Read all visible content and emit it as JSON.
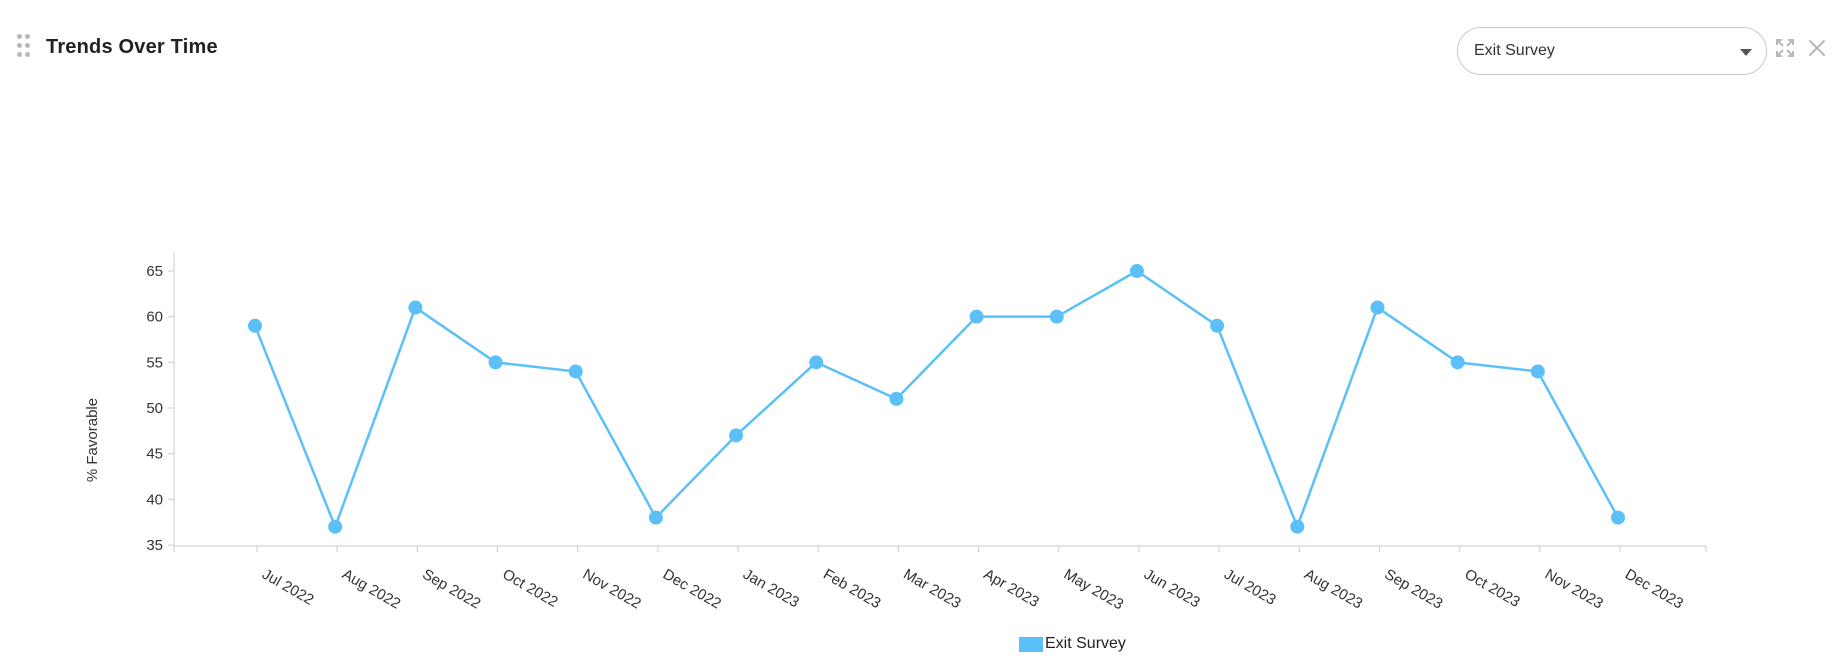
{
  "header": {
    "title": "Trends Over Time",
    "drag_icon": "drag-handle-icon",
    "expand_icon": "expand-icon",
    "close_icon": "close-icon"
  },
  "survey_select": {
    "selected": "Exit Survey"
  },
  "colors": {
    "series": "#5bc0f8",
    "axis": "#cccccc",
    "icon": "#b8b8b8"
  },
  "chart_data": {
    "type": "line",
    "title": "",
    "xlabel": "",
    "ylabel": "% Favorable",
    "ylim": [
      35,
      65
    ],
    "yticks": [
      35,
      40,
      45,
      50,
      55,
      60,
      65
    ],
    "categories": [
      "Jul 2022",
      "Aug 2022",
      "Sep 2022",
      "Oct 2022",
      "Nov 2022",
      "Dec 2022",
      "Jan 2023",
      "Feb 2023",
      "Mar 2023",
      "Apr 2023",
      "May 2023",
      "Jun 2023",
      "Jul 2023",
      "Aug 2023",
      "Sep 2023",
      "Oct 2023",
      "Nov 2023",
      "Dec 2023"
    ],
    "series": [
      {
        "name": "Exit Survey",
        "values": [
          59,
          37,
          61,
          55,
          54,
          38,
          47,
          55,
          51,
          60,
          60,
          65,
          59,
          37,
          61,
          55,
          54,
          38
        ]
      }
    ],
    "grid": false,
    "legend_position": "bottom-center"
  }
}
